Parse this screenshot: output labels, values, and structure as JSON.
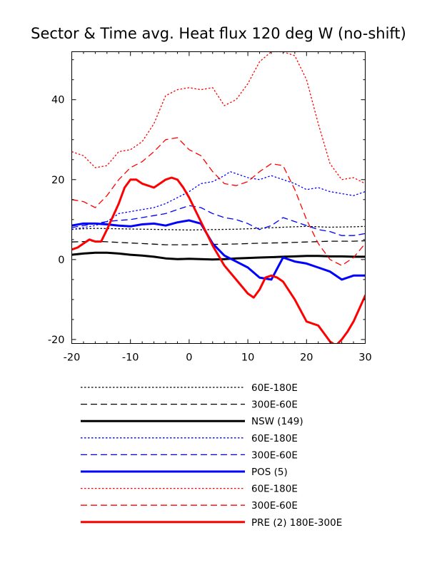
{
  "chart_data": {
    "type": "line",
    "title": "Sector & Time avg. Heat flux 120 deg W (no-shift)",
    "xlabel": "",
    "ylabel": "",
    "xlim": [
      -20,
      30
    ],
    "ylim": [
      -21,
      52
    ],
    "x_ticks": [
      -20,
      -10,
      0,
      10,
      20,
      30
    ],
    "x_tick_labels": [
      "-20",
      "-10",
      "0",
      "10",
      "20",
      "30"
    ],
    "y_ticks": [
      -20,
      0,
      20,
      40
    ],
    "y_tick_labels": [
      "-20",
      "0",
      "20",
      "40"
    ],
    "grid": false,
    "legend_position": "below plot",
    "series": [
      {
        "name": "60E-180E",
        "color": "#000000",
        "style": "dotted",
        "width": 1.3,
        "x": [
          -20,
          -16,
          -12,
          -8,
          -4,
          0,
          4,
          8,
          12,
          16,
          20,
          24,
          28,
          30
        ],
        "y": [
          7.6,
          7.8,
          7.7,
          7.6,
          7.5,
          7.4,
          7.5,
          7.6,
          7.8,
          8.1,
          8.3,
          8.1,
          8.2,
          8.3
        ]
      },
      {
        "name": "300E-60E",
        "color": "#000000",
        "style": "dashed",
        "width": 1.3,
        "x": [
          -20,
          -16,
          -12,
          -8,
          -4,
          0,
          4,
          8,
          12,
          16,
          20,
          24,
          28,
          30
        ],
        "y": [
          4.4,
          4.6,
          4.3,
          4.0,
          3.7,
          3.7,
          3.8,
          3.9,
          4.1,
          4.2,
          4.4,
          4.6,
          4.6,
          4.7
        ]
      },
      {
        "name": "NSW (149)",
        "color": "#000000",
        "style": "solid",
        "width": 3,
        "x": [
          -20,
          -18,
          -16,
          -14,
          -12,
          -10,
          -8,
          -6,
          -4,
          -2,
          0,
          2,
          4,
          6,
          8,
          10,
          12,
          14,
          16,
          18,
          20,
          22,
          24,
          26,
          28,
          30
        ],
        "y": [
          1.2,
          1.5,
          1.7,
          1.7,
          1.5,
          1.2,
          1.0,
          0.7,
          0.3,
          0.1,
          0.2,
          0.1,
          0.0,
          0.1,
          0.3,
          0.4,
          0.5,
          0.6,
          0.7,
          0.8,
          0.9,
          0.9,
          0.8,
          0.8,
          0.7,
          0.7
        ]
      },
      {
        "name": "60E-180E",
        "color": "#0000ff",
        "style": "dotted",
        "width": 1.3,
        "x": [
          -20,
          -18,
          -16,
          -14,
          -12,
          -10,
          -8,
          -6,
          -4,
          -2,
          0,
          2,
          4,
          6,
          7,
          8,
          10,
          12,
          14,
          16,
          18,
          20,
          22,
          24,
          26,
          28,
          30
        ],
        "y": [
          7.5,
          8.0,
          8.5,
          9.5,
          11.5,
          12.0,
          12.5,
          13.0,
          14.0,
          15.5,
          17.0,
          19.0,
          19.5,
          21.0,
          22.0,
          21.5,
          20.5,
          20.0,
          21.0,
          20.0,
          19.0,
          17.5,
          18.0,
          17.0,
          16.5,
          16.0,
          17.0
        ]
      },
      {
        "name": "300E-60E",
        "color": "#0000ff",
        "style": "dashed",
        "width": 1.3,
        "x": [
          -20,
          -18,
          -16,
          -14,
          -12,
          -10,
          -8,
          -6,
          -4,
          -2,
          0,
          2,
          4,
          6,
          8,
          10,
          12,
          14,
          16,
          18,
          20,
          22,
          24,
          26,
          28,
          30
        ],
        "y": [
          8.0,
          8.5,
          9.0,
          9.5,
          9.8,
          10.0,
          10.5,
          11.0,
          11.5,
          12.5,
          13.5,
          13.0,
          11.5,
          10.5,
          10.0,
          9.0,
          7.5,
          8.5,
          10.5,
          9.5,
          8.5,
          7.5,
          7.0,
          6.0,
          6.0,
          6.5
        ]
      },
      {
        "name": "POS (5)",
        "color": "#0000ff",
        "style": "solid",
        "width": 3,
        "x": [
          -20,
          -18,
          -16,
          -14,
          -12,
          -10,
          -8,
          -6,
          -4,
          -2,
          0,
          2,
          4,
          6,
          8,
          10,
          12,
          14,
          16,
          18,
          20,
          22,
          24,
          26,
          28,
          30
        ],
        "y": [
          8.5,
          9.0,
          9.0,
          8.8,
          8.5,
          8.3,
          8.8,
          9.0,
          8.5,
          9.3,
          9.8,
          9.0,
          4.0,
          1.0,
          -0.5,
          -2.0,
          -4.5,
          -5.0,
          0.5,
          -0.5,
          -1.0,
          -2.0,
          -3.0,
          -5.0,
          -4.0,
          -4.0
        ]
      },
      {
        "name": "60E-180E",
        "color": "#ff0000",
        "style": "dotted",
        "width": 1.3,
        "x": [
          -20,
          -18,
          -16,
          -14,
          -12,
          -10,
          -8,
          -6,
          -4,
          -2,
          0,
          2,
          4,
          6,
          8,
          10,
          12,
          14,
          16,
          18,
          20,
          22,
          24,
          26,
          28,
          30
        ],
        "y": [
          27.0,
          26.0,
          23.0,
          23.5,
          27.0,
          27.5,
          29.5,
          34.0,
          41.0,
          42.5,
          43.0,
          42.5,
          43.0,
          38.5,
          40.0,
          44.0,
          49.5,
          52.0,
          52.0,
          51.0,
          45.0,
          34.0,
          24.0,
          20.0,
          20.5,
          19.0
        ]
      },
      {
        "name": "300E-60E",
        "color": "#ff0000",
        "style": "dashed",
        "width": 1.3,
        "x": [
          -20,
          -18,
          -16,
          -14,
          -12,
          -10,
          -8,
          -6,
          -4,
          -2,
          0,
          2,
          4,
          6,
          8,
          10,
          12,
          14,
          16,
          18,
          20,
          22,
          24,
          26,
          28,
          30
        ],
        "y": [
          15.0,
          14.5,
          13.0,
          16.0,
          20.0,
          23.0,
          24.5,
          27.0,
          30.0,
          30.5,
          27.5,
          26.0,
          22.0,
          19.0,
          18.5,
          19.5,
          22.0,
          24.0,
          23.5,
          17.5,
          10.0,
          4.0,
          0.0,
          -1.5,
          0.5,
          4.0
        ]
      },
      {
        "name": "PRE (2) 180E-300E",
        "color": "#ff0000",
        "style": "solid",
        "width": 3,
        "x": [
          -20,
          -19,
          -18,
          -17,
          -16,
          -15,
          -14,
          -12,
          -11,
          -10,
          -9,
          -8,
          -7,
          -6,
          -5,
          -4,
          -3,
          -2,
          -1,
          0,
          2,
          4,
          6,
          8,
          10,
          11,
          12,
          13,
          14,
          15,
          16,
          18,
          20,
          21,
          22,
          23,
          24,
          25,
          26,
          27,
          28,
          30
        ],
        "y": [
          2.5,
          3.0,
          4.0,
          5.0,
          4.5,
          4.5,
          7.5,
          14.0,
          18.0,
          20.0,
          20.0,
          19.0,
          18.5,
          18.0,
          19.0,
          20.0,
          20.5,
          20.0,
          18.0,
          15.5,
          9.5,
          3.5,
          -1.5,
          -5.0,
          -8.5,
          -9.5,
          -7.5,
          -4.5,
          -4.0,
          -4.5,
          -5.5,
          -10.0,
          -15.5,
          -16.0,
          -16.5,
          -18.5,
          -20.5,
          -21.5,
          -20.0,
          -18.0,
          -15.5,
          -9.0
        ]
      }
    ]
  }
}
